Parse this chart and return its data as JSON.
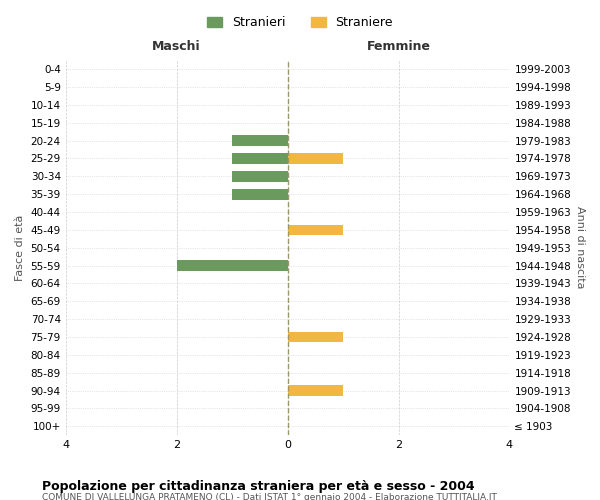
{
  "age_groups": [
    "100+",
    "95-99",
    "90-94",
    "85-89",
    "80-84",
    "75-79",
    "70-74",
    "65-69",
    "60-64",
    "55-59",
    "50-54",
    "45-49",
    "40-44",
    "35-39",
    "30-34",
    "25-29",
    "20-24",
    "15-19",
    "10-14",
    "5-9",
    "0-4"
  ],
  "birth_years": [
    "≤ 1903",
    "1904-1908",
    "1909-1913",
    "1914-1918",
    "1919-1923",
    "1924-1928",
    "1929-1933",
    "1934-1938",
    "1939-1943",
    "1944-1948",
    "1949-1953",
    "1954-1958",
    "1959-1963",
    "1964-1968",
    "1969-1973",
    "1974-1978",
    "1979-1983",
    "1984-1988",
    "1989-1993",
    "1994-1998",
    "1999-2003"
  ],
  "males": [
    0,
    0,
    0,
    0,
    0,
    0,
    0,
    0,
    0,
    2,
    0,
    0,
    0,
    1,
    1,
    1,
    1,
    0,
    0,
    0,
    0
  ],
  "females": [
    0,
    0,
    1,
    0,
    0,
    1,
    0,
    0,
    0,
    0,
    0,
    1,
    0,
    0,
    0,
    1,
    0,
    0,
    0,
    0,
    0
  ],
  "male_color": "#6b9a5e",
  "female_color": "#f0b840",
  "xlim": 4,
  "xlabel_left": "Maschi",
  "xlabel_right": "Femmine",
  "ylabel_left": "Fasce di età",
  "ylabel_right": "Anni di nascita",
  "title": "Popolazione per cittadinanza straniera per età e sesso - 2004",
  "subtitle": "COMUNE DI VALLELUNGA PRATAMENO (CL) - Dati ISTAT 1° gennaio 2004 - Elaborazione TUTTITALIA.IT",
  "legend_stranieri": "Stranieri",
  "legend_straniere": "Straniere",
  "background_color": "#ffffff",
  "grid_color": "#cccccc",
  "center_line_color": "#999966"
}
